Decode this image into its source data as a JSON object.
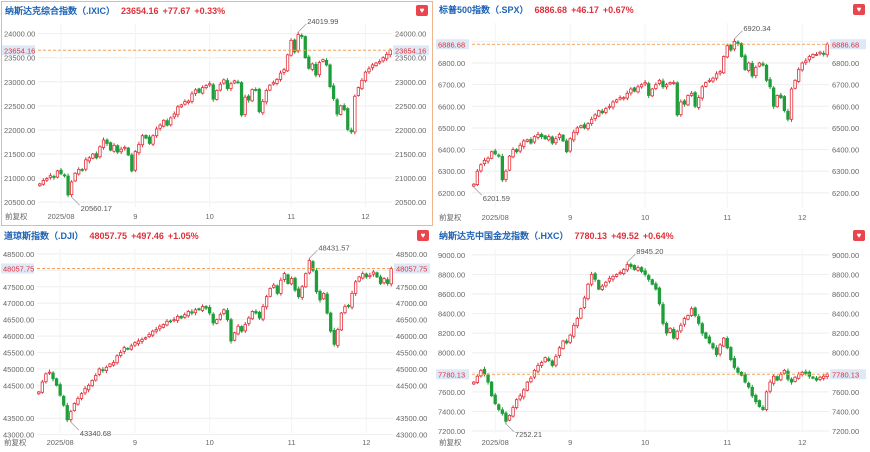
{
  "colors": {
    "up": "#e0303a",
    "down": "#1f9e3a",
    "title": "#1e63b6",
    "ref_line": "#f2a25a",
    "ref_label_bg": "#dde9f7",
    "grid": "#eeeeee",
    "axis_text": "#666666"
  },
  "icons": {
    "favorite": "heart-icon"
  },
  "chart_data": [
    {
      "type": "candlestick",
      "name": "纳斯达克综合指数（.IXIC）",
      "last": "23654.16",
      "change": "+77.67",
      "change_pct": "+0.33%",
      "selected": true,
      "ylim": [
        20400,
        24200
      ],
      "yticks": [
        "24000.00",
        "23500.00",
        "23000.00",
        "22500.00",
        "22000.00",
        "21500.00",
        "21000.00",
        "20500.00"
      ],
      "xticks": [
        {
          "label": "2025/08",
          "idx": 6
        },
        {
          "label": "9",
          "idx": 27
        },
        {
          "label": "10",
          "idx": 48
        },
        {
          "label": "11",
          "idx": 71
        },
        {
          "label": "12",
          "idx": 92
        }
      ],
      "ref_label": "23654.16",
      "high_label": "24019.99",
      "low_label": "20560.17",
      "bottom_label": "前复权",
      "closes": [
        20880,
        20950,
        20990,
        21050,
        21020,
        21150,
        21090,
        21050,
        20650,
        20920,
        21100,
        21180,
        21170,
        21380,
        21420,
        21500,
        21420,
        21650,
        21790,
        21720,
        21580,
        21680,
        21540,
        21600,
        21640,
        21480,
        21150,
        21550,
        21700,
        21880,
        21830,
        21720,
        21880,
        22020,
        22100,
        22200,
        22100,
        22250,
        22330,
        22480,
        22520,
        22590,
        22600,
        22750,
        22830,
        22780,
        22880,
        22920,
        22960,
        22640,
        22820,
        22950,
        23040,
        22860,
        22960,
        23020,
        22990,
        22310,
        22680,
        22620,
        22840,
        22830,
        22380,
        22590,
        22820,
        22930,
        22980,
        23050,
        23180,
        23250,
        23560,
        23860,
        23620,
        23980,
        23940,
        23500,
        23280,
        23370,
        23140,
        23400,
        23460,
        23350,
        22900,
        22650,
        22330,
        22500,
        22420,
        22010,
        21960,
        22700,
        22880,
        23030,
        23200,
        23270,
        23350,
        23390,
        23420,
        23500,
        23570,
        23654
      ]
    },
    {
      "type": "candlestick",
      "name": "标普500指数（.SPX）",
      "last": "6886.68",
      "change": "+46.17",
      "change_pct": "+0.67%",
      "selected": false,
      "ylim": [
        6130,
        6985
      ],
      "yticks": [
        "6900.00",
        "6800.00",
        "6700.00",
        "6600.00",
        "6500.00",
        "6400.00",
        "6300.00",
        "6200.00"
      ],
      "xticks": [
        {
          "label": "2025/08",
          "idx": 6
        },
        {
          "label": "9",
          "idx": 27
        },
        {
          "label": "10",
          "idx": 48
        },
        {
          "label": "11",
          "idx": 71
        },
        {
          "label": "12",
          "idx": 92
        }
      ],
      "ref_label": "6886.68",
      "high_label": "6920.34",
      "low_label": "6201.59",
      "bottom_label": "前复权",
      "closes": [
        6240,
        6300,
        6330,
        6350,
        6360,
        6390,
        6380,
        6370,
        6260,
        6300,
        6370,
        6400,
        6390,
        6420,
        6440,
        6445,
        6430,
        6460,
        6470,
        6460,
        6450,
        6460,
        6430,
        6450,
        6470,
        6440,
        6390,
        6450,
        6480,
        6500,
        6510,
        6500,
        6520,
        6540,
        6560,
        6580,
        6570,
        6590,
        6600,
        6620,
        6630,
        6640,
        6640,
        6660,
        6680,
        6670,
        6690,
        6700,
        6710,
        6650,
        6680,
        6700,
        6720,
        6690,
        6700,
        6710,
        6710,
        6560,
        6620,
        6610,
        6650,
        6660,
        6600,
        6640,
        6690,
        6710,
        6720,
        6730,
        6750,
        6760,
        6830,
        6880,
        6860,
        6900,
        6890,
        6830,
        6770,
        6800,
        6740,
        6780,
        6800,
        6790,
        6720,
        6690,
        6600,
        6650,
        6640,
        6580,
        6540,
        6680,
        6720,
        6770,
        6800,
        6810,
        6830,
        6840,
        6840,
        6850,
        6840,
        6887
      ]
    },
    {
      "type": "candlestick",
      "name": "道琼斯指数（.DJI）",
      "last": "48057.75",
      "change": "+497.46",
      "change_pct": "+1.05%",
      "selected": false,
      "ylim": [
        43050,
        48650
      ],
      "yticks": [
        "48500.00",
        "48000.00",
        "47500.00",
        "47000.00",
        "46500.00",
        "46000.00",
        "45500.00",
        "45000.00",
        "44500.00",
        "43500.00",
        "43000.00"
      ],
      "xticks": [
        {
          "label": "2025/08",
          "idx": 6
        },
        {
          "label": "9",
          "idx": 27
        },
        {
          "label": "10",
          "idx": 48
        },
        {
          "label": "11",
          "idx": 71
        },
        {
          "label": "12",
          "idx": 92
        }
      ],
      "ref_label": "48057.75",
      "high_label": "48431.57",
      "low_label": "43340.68",
      "bottom_label": "前复权",
      "closes": [
        44300,
        44600,
        44850,
        44900,
        44700,
        44500,
        44200,
        43900,
        43450,
        43700,
        43950,
        44100,
        44250,
        44400,
        44500,
        44650,
        44800,
        45000,
        44950,
        45050,
        45150,
        45200,
        45400,
        45500,
        45650,
        45600,
        45700,
        45800,
        45850,
        45900,
        45950,
        46050,
        46150,
        46200,
        46300,
        46350,
        46450,
        46450,
        46500,
        46600,
        46550,
        46650,
        46750,
        46700,
        46800,
        46800,
        46900,
        46850,
        46700,
        46400,
        46500,
        46650,
        46800,
        46500,
        45850,
        46100,
        46300,
        46150,
        46350,
        46550,
        46750,
        46700,
        46550,
        46900,
        47200,
        47450,
        47550,
        47300,
        47700,
        47900,
        47600,
        47750,
        47400,
        47200,
        47500,
        47900,
        48300,
        48000,
        47350,
        47100,
        47300,
        46700,
        46150,
        45750,
        46200,
        46700,
        46900,
        46900,
        47300,
        47650,
        47800,
        47900,
        47800,
        47850,
        47950,
        47800,
        47600,
        47750,
        47600,
        48058
      ]
    },
    {
      "type": "candlestick",
      "name": "纳斯达克中国金龙指数（.HXC）",
      "last": "7780.13",
      "change": "+49.52",
      "change_pct": "+0.64%",
      "selected": false,
      "ylim": [
        7180,
        9060
      ],
      "yticks": [
        "9000.00",
        "8800.00",
        "8600.00",
        "8400.00",
        "8200.00",
        "8000.00",
        "7800.00",
        "7600.00",
        "7400.00",
        "7200.00"
      ],
      "xticks": [
        {
          "label": "2025/08",
          "idx": 6
        },
        {
          "label": "9",
          "idx": 27
        },
        {
          "label": "10",
          "idx": 48
        },
        {
          "label": "11",
          "idx": 71
        },
        {
          "label": "12",
          "idx": 92
        }
      ],
      "ref_label": "7780.13",
      "high_label": "8945.20",
      "low_label": "7252.21",
      "bottom_label": "前复权",
      "closes": [
        7700,
        7760,
        7820,
        7780,
        7700,
        7560,
        7480,
        7420,
        7380,
        7300,
        7360,
        7440,
        7520,
        7560,
        7620,
        7700,
        7740,
        7820,
        7870,
        7900,
        7950,
        7920,
        7870,
        7960,
        8050,
        8120,
        8100,
        8180,
        8280,
        8350,
        8450,
        8560,
        8700,
        8800,
        8750,
        8650,
        8680,
        8720,
        8760,
        8780,
        8800,
        8820,
        8850,
        8900,
        8880,
        8850,
        8870,
        8830,
        8800,
        8750,
        8700,
        8650,
        8500,
        8300,
        8200,
        8250,
        8150,
        8220,
        8280,
        8350,
        8380,
        8450,
        8380,
        8300,
        8200,
        8150,
        8100,
        8050,
        7980,
        8080,
        8150,
        8050,
        7930,
        7850,
        7800,
        7770,
        7700,
        7650,
        7560,
        7500,
        7450,
        7420,
        7600,
        7700,
        7760,
        7720,
        7780,
        7820,
        7730,
        7700,
        7750,
        7780,
        7800,
        7790,
        7760,
        7740,
        7720,
        7750,
        7760,
        7780
      ]
    }
  ]
}
